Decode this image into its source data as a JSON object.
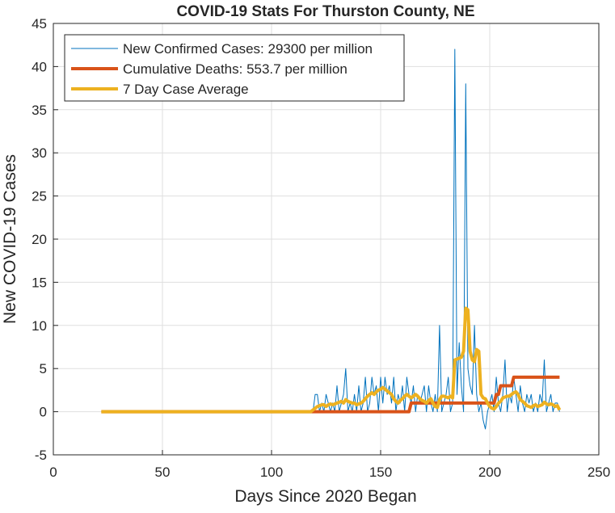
{
  "chart_data": {
    "type": "line",
    "title": "COVID-19 Stats For Thurston County, NE",
    "xlabel": "Days Since 2020 Began",
    "ylabel": "New COVID-19 Cases",
    "x": [
      22,
      118,
      119,
      120,
      121,
      122,
      123,
      124,
      125,
      126,
      127,
      128,
      129,
      130,
      131,
      132,
      133,
      134,
      135,
      136,
      137,
      138,
      139,
      140,
      141,
      142,
      143,
      144,
      145,
      146,
      147,
      148,
      149,
      150,
      151,
      152,
      153,
      154,
      155,
      156,
      157,
      158,
      159,
      160,
      161,
      162,
      163,
      164,
      165,
      166,
      167,
      168,
      169,
      170,
      171,
      172,
      173,
      174,
      175,
      176,
      177,
      178,
      179,
      180,
      181,
      182,
      183,
      184,
      185,
      186,
      187,
      188,
      189,
      190,
      191,
      192,
      193,
      194,
      195,
      196,
      197,
      198,
      199,
      200,
      201,
      202,
      203,
      204,
      205,
      206,
      207,
      208,
      209,
      210,
      211,
      212,
      213,
      214,
      215,
      216,
      217,
      218,
      219,
      220,
      221,
      222,
      223,
      224,
      225,
      226,
      227,
      228,
      229,
      230,
      231,
      232
    ],
    "series": [
      {
        "name": "New Confirmed Cases: 29300 per million",
        "color": "#0072bd",
        "width": 1,
        "values": [
          0,
          0,
          0,
          2,
          2,
          0,
          1,
          0,
          2,
          1,
          0,
          1,
          0,
          3,
          0,
          1,
          2,
          5,
          0,
          1,
          0,
          2,
          0,
          3,
          0,
          1,
          4,
          0,
          1,
          4,
          2,
          3,
          0,
          4,
          1,
          4,
          2,
          3,
          1,
          4,
          0,
          2,
          1,
          3,
          0,
          4,
          2,
          1,
          3,
          0,
          2,
          1,
          2,
          3,
          0,
          3,
          1,
          0,
          2,
          0,
          10,
          0,
          1,
          2,
          4,
          0,
          1,
          42,
          2,
          8,
          3,
          0,
          38,
          5,
          3,
          2,
          10,
          2,
          0,
          1,
          -1,
          -2,
          0,
          1,
          2,
          0,
          4,
          1,
          0,
          2,
          6,
          0,
          2,
          1,
          4,
          2,
          0,
          3,
          1,
          0,
          2,
          1,
          2,
          0,
          1,
          0,
          2,
          1,
          6,
          0,
          1,
          2,
          0,
          1,
          1,
          0
        ]
      },
      {
        "name": "Cumulative Deaths: 553.7 per million",
        "color": "#d95319",
        "width": 4,
        "values": [
          0,
          0,
          0,
          0,
          0,
          0,
          0,
          0,
          0,
          0,
          0,
          0,
          0,
          0,
          0,
          0,
          0,
          0,
          0,
          0,
          0,
          0,
          0,
          0,
          0,
          0,
          0,
          0,
          0,
          0,
          0,
          0,
          0,
          0,
          0,
          0,
          0,
          0,
          0,
          0,
          0,
          0,
          0,
          0,
          0,
          0,
          0,
          1,
          1,
          1,
          1,
          1,
          1,
          1,
          1,
          1,
          1,
          1,
          1,
          1,
          1,
          1,
          1,
          1,
          1,
          1,
          1,
          1,
          1,
          1,
          1,
          1,
          1,
          1,
          1,
          1,
          1,
          1,
          1,
          1,
          1,
          1,
          1,
          1,
          1,
          1,
          2,
          2,
          3,
          3,
          3,
          3,
          3,
          3,
          4,
          4,
          4,
          4,
          4,
          4,
          4,
          4,
          4,
          4,
          4,
          4,
          4,
          4,
          4,
          4,
          4,
          4,
          4,
          4,
          4,
          4
        ]
      },
      {
        "name": "7 Day Case Average",
        "color": "#edb120",
        "width": 4,
        "values": [
          0,
          0,
          0.2,
          0.4,
          0.6,
          0.7,
          0.8,
          0.8,
          0.6,
          0.8,
          0.9,
          0.8,
          0.9,
          1.0,
          1.1,
          1.2,
          1.0,
          1.4,
          1.2,
          1.1,
          1.0,
          1.0,
          0.8,
          0.9,
          1.0,
          1.2,
          1.5,
          1.8,
          2.0,
          2.2,
          2.0,
          2.3,
          2.5,
          2.6,
          2.8,
          2.6,
          2.4,
          2.2,
          2.0,
          1.5,
          1.2,
          1.0,
          1.3,
          1.5,
          1.8,
          2.0,
          1.8,
          1.6,
          1.8,
          2.0,
          1.8,
          1.5,
          1.3,
          1.2,
          1.0,
          1.3,
          1.5,
          1.0,
          0.6,
          0.5,
          1.4,
          1.8,
          1.8,
          1.7,
          1.6,
          1.8,
          1.6,
          6.0,
          6.1,
          6.2,
          6.3,
          7.0,
          12.0,
          11.8,
          7.0,
          6.0,
          5.8,
          7.2,
          7.0,
          2.0,
          1.6,
          1.5,
          1.0,
          0.6,
          0.4,
          0.3,
          0.6,
          1.0,
          1.2,
          1.6,
          1.7,
          1.8,
          1.8,
          2.0,
          2.2,
          2.3,
          2.0,
          1.4,
          1.2,
          1.0,
          0.7,
          0.6,
          0.5,
          0.7,
          0.8,
          0.6,
          0.7,
          0.8,
          1.1,
          0.9,
          0.8,
          0.9,
          0.8,
          0.6,
          0.7,
          0.2
        ]
      }
    ],
    "xlim": [
      0,
      250
    ],
    "xticks": [
      0,
      50,
      100,
      150,
      200,
      250
    ],
    "ylim": [
      -5,
      45
    ],
    "yticks": [
      -5,
      0,
      5,
      10,
      15,
      20,
      25,
      30,
      35,
      40,
      45
    ],
    "grid": true,
    "legend": "upper left"
  }
}
